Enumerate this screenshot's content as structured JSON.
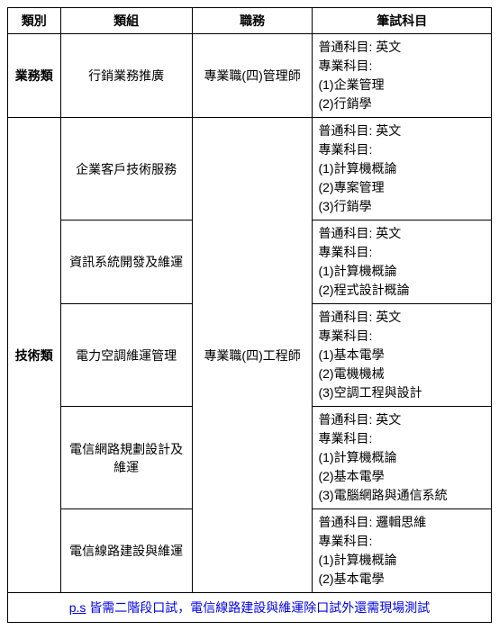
{
  "headers": {
    "category": "類別",
    "group": "類組",
    "position": "職務",
    "subjects": "筆試科目"
  },
  "categories": {
    "business": "業務類",
    "tech": "技術類"
  },
  "positions": {
    "manager": "專業職(四)管理師",
    "engineer": "專業職(四)工程師"
  },
  "groups": {
    "g1": "行銷業務推廣",
    "g2": "企業客戶技術服務",
    "g3": "資訊系統開發及維運",
    "g4": "電力空調維運管理",
    "g5": "電信網路規劃設計及維運",
    "g6": "電信線路建設與維運"
  },
  "subjects": {
    "r1": {
      "common_label": "普通科目:",
      "common_val": "英文",
      "pro_label": "專業科目:",
      "i1": "(1)企業管理",
      "i2": "(2)行銷學"
    },
    "r2": {
      "common_label": "普通科目:",
      "common_val": "英文",
      "pro_label": "專業科目:",
      "i1": "(1)計算機概論",
      "i2": "(2)專案管理",
      "i3": "(3)行銷學"
    },
    "r3": {
      "common_label": "普通科目:",
      "common_val": "英文",
      "pro_label": "專業科目:",
      "i1": "(1)計算機概論",
      "i2": "(2)程式設計概論"
    },
    "r4": {
      "common_label": "普通科目:",
      "common_val": "英文",
      "pro_label": "專業科目:",
      "i1": "(1)基本電學",
      "i2": "(2)電機機械",
      "i3": "(3)空調工程與設計"
    },
    "r5": {
      "common_label": "普通科目:",
      "common_val": "英文",
      "pro_label": "專業科目:",
      "i1": "(1)計算機概論",
      "i2": "(2)基本電學",
      "i3": "(3)電腦網路與通信系統"
    },
    "r6": {
      "common_label": "普通科目:",
      "common_val": "邏輯思維",
      "pro_label": "專業科目:",
      "i1": "(1)計算機概論",
      "i2": "(2)基本電學"
    }
  },
  "footnote": {
    "ps": "p.s",
    "text": " 皆需二階段口試，電信線路建設與維運除口試外還需現場測試"
  }
}
